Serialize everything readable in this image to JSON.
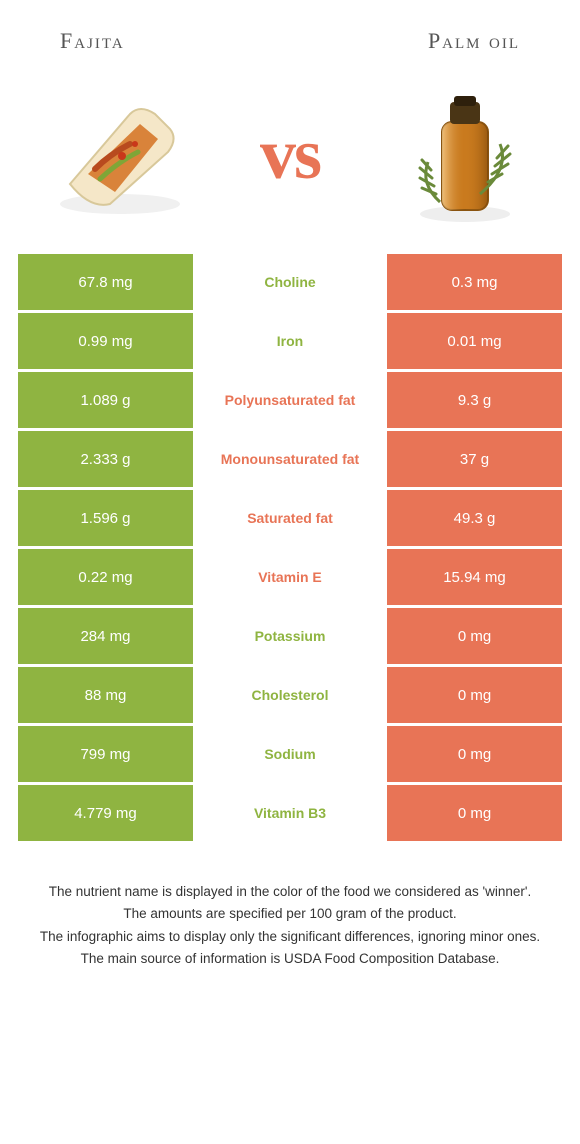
{
  "header": {
    "left_title": "Fajita",
    "right_title": "Palm oil",
    "vs": "vs"
  },
  "colors": {
    "left": "#8fb441",
    "right": "#e87456",
    "background": "#ffffff"
  },
  "rows": [
    {
      "left": "67.8 mg",
      "label": "Choline",
      "right": "0.3 mg",
      "winner": "left"
    },
    {
      "left": "0.99 mg",
      "label": "Iron",
      "right": "0.01 mg",
      "winner": "left"
    },
    {
      "left": "1.089 g",
      "label": "Polyunsaturated fat",
      "right": "9.3 g",
      "winner": "right"
    },
    {
      "left": "2.333 g",
      "label": "Monounsaturated fat",
      "right": "37 g",
      "winner": "right"
    },
    {
      "left": "1.596 g",
      "label": "Saturated fat",
      "right": "49.3 g",
      "winner": "right"
    },
    {
      "left": "0.22 mg",
      "label": "Vitamin E",
      "right": "15.94 mg",
      "winner": "right"
    },
    {
      "left": "284 mg",
      "label": "Potassium",
      "right": "0 mg",
      "winner": "left"
    },
    {
      "left": "88 mg",
      "label": "Cholesterol",
      "right": "0 mg",
      "winner": "left"
    },
    {
      "left": "799 mg",
      "label": "Sodium",
      "right": "0 mg",
      "winner": "left"
    },
    {
      "left": "4.779 mg",
      "label": "Vitamin B3",
      "right": "0 mg",
      "winner": "left"
    }
  ],
  "footer": {
    "line1": "The nutrient name is displayed in the color of the food we considered as 'winner'.",
    "line2": "The amounts are specified per 100 gram of the product.",
    "line3": "The infographic aims to display only the significant differences, ignoring minor ones.",
    "line4": "The main source of information is USDA Food Composition Database."
  }
}
